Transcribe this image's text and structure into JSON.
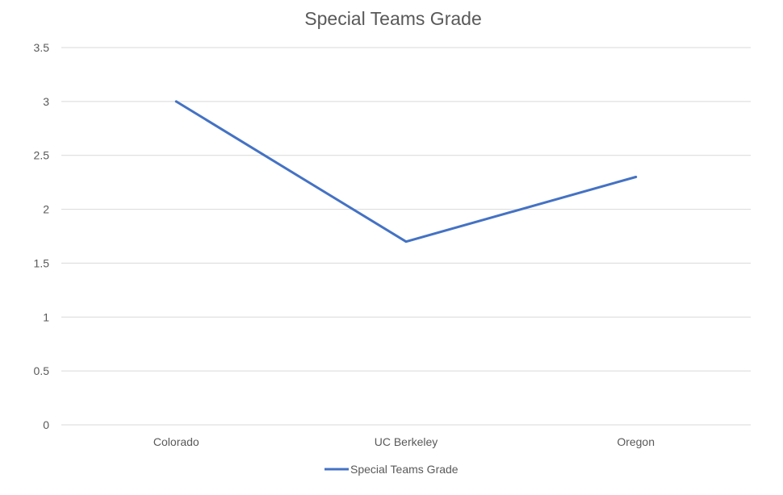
{
  "chart_data": {
    "type": "line",
    "title": "Special Teams Grade",
    "xlabel": "",
    "ylabel": "",
    "categories": [
      "Colorado",
      "UC Berkeley",
      "Oregon"
    ],
    "series": [
      {
        "name": "Special Teams Grade",
        "values": [
          3.0,
          1.7,
          2.3
        ],
        "color": "#4472c4"
      }
    ],
    "ylim": [
      0,
      3.5
    ],
    "ytick_labels": [
      "0",
      "0.5",
      "1",
      "1.5",
      "2",
      "2.5",
      "3",
      "3.5"
    ],
    "ytick_values": [
      0,
      0.5,
      1,
      1.5,
      2,
      2.5,
      3,
      3.5
    ],
    "grid": true,
    "legend_position": "bottom"
  }
}
